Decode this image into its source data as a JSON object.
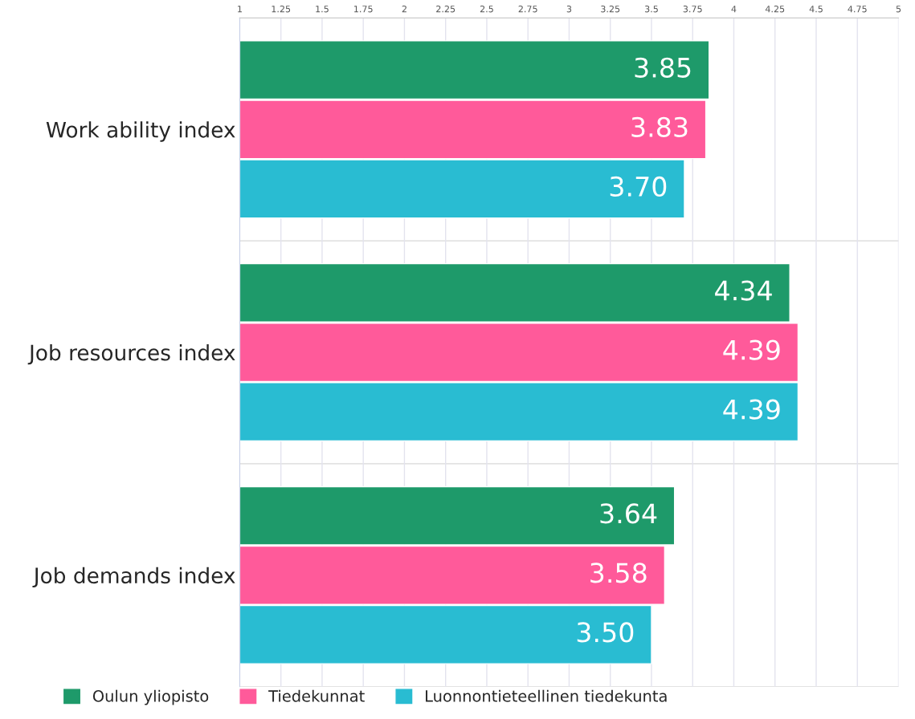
{
  "chart_data": {
    "type": "bar",
    "orientation": "horizontal",
    "categories": [
      "Work ability index",
      "Job resources index",
      "Job demands index"
    ],
    "series": [
      {
        "name": "Oulun yliopisto",
        "color": "#1e9a6a",
        "values": [
          3.85,
          4.34,
          3.64
        ],
        "value_labels": [
          "3.85",
          "4.34",
          "3.64"
        ]
      },
      {
        "name": "Tiedekunnat",
        "color": "#ff5a9a",
        "values": [
          3.83,
          4.39,
          3.58
        ],
        "value_labels": [
          "3.83",
          "4.39",
          "3.58"
        ]
      },
      {
        "name": "Luonnontieteellinen tiedekunta",
        "color": "#29bcd2",
        "values": [
          3.7,
          4.39,
          3.5
        ],
        "value_labels": [
          "3.70",
          "4.39",
          "3.50"
        ]
      }
    ],
    "xlim": [
      1,
      5
    ],
    "xticks": [
      1,
      1.25,
      1.5,
      1.75,
      2,
      2.25,
      2.5,
      2.75,
      3,
      3.25,
      3.5,
      3.75,
      4,
      4.25,
      4.5,
      4.75,
      5
    ],
    "grid": true,
    "legend": "bottom"
  }
}
